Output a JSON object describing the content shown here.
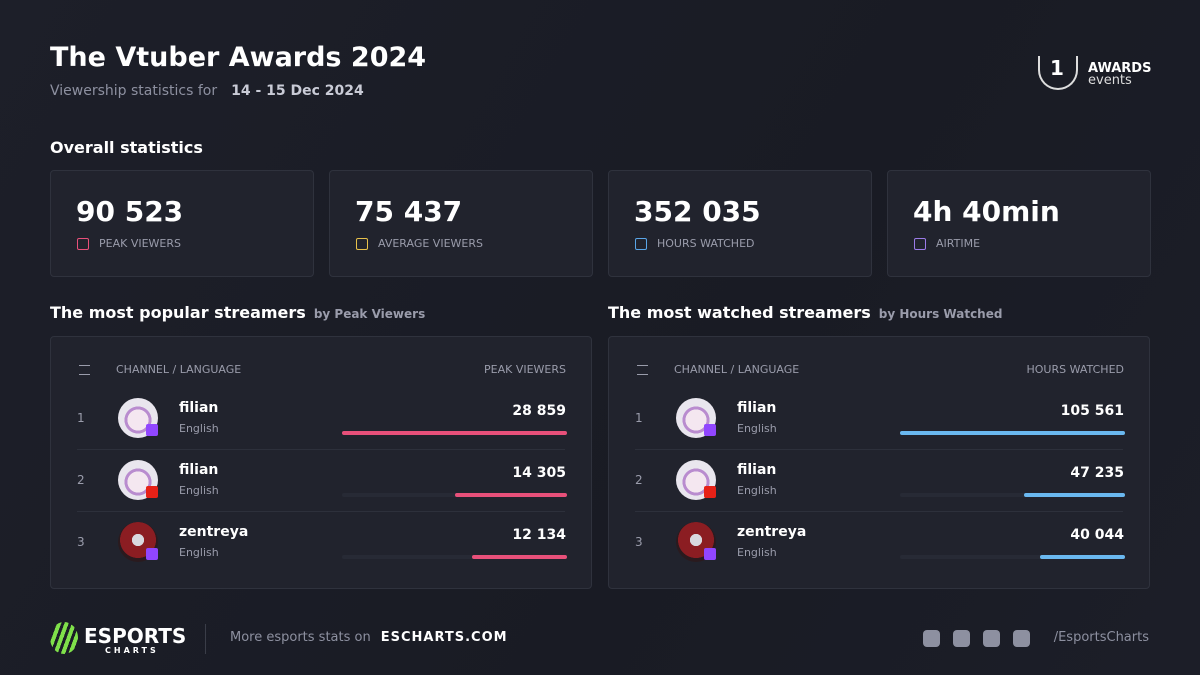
{
  "header": {
    "title": "The Vtuber Awards 2024",
    "subtitle": "Viewership statistics for",
    "dates": "14 - 15 Dec 2024"
  },
  "logo": {
    "rank": "1",
    "line1": "AWARDS",
    "line2": "events"
  },
  "overall": {
    "title": "Overall statistics",
    "cards": [
      {
        "value": "90 523",
        "label": "PEAK VIEWERS",
        "icon_color": "#e8507a"
      },
      {
        "value": "75 437",
        "label": "AVERAGE VIEWERS",
        "icon_color": "#e7c14b"
      },
      {
        "value": "352 035",
        "label": "HOURS WATCHED",
        "icon_color": "#5aa6e8"
      },
      {
        "value": "4h 40min",
        "label": "AIRTIME",
        "icon_color": "#9b7be8"
      }
    ]
  },
  "tables": [
    {
      "title": "The most popular streamers",
      "subtitle": "by Peak Viewers",
      "col_channel": "CHANNEL / LANGUAGE",
      "col_metric": "PEAK VIEWERS",
      "bar_color": "#e8507a",
      "rows": [
        {
          "rank": 1,
          "name": "filian",
          "language": "English",
          "platform": "twitch",
          "value": 28859,
          "value_label": "28 859"
        },
        {
          "rank": 2,
          "name": "filian",
          "language": "English",
          "platform": "youtube",
          "value": 14305,
          "value_label": "14 305"
        },
        {
          "rank": 3,
          "name": "zentreya",
          "language": "English",
          "platform": "twitch",
          "value": 12134,
          "value_label": "12 134"
        }
      ]
    },
    {
      "title": "The most watched streamers",
      "subtitle": "by Hours Watched",
      "col_channel": "CHANNEL / LANGUAGE",
      "col_metric": "HOURS WATCHED",
      "bar_color": "#6ab8f0",
      "rows": [
        {
          "rank": 1,
          "name": "filian",
          "language": "English",
          "platform": "twitch",
          "value": 105561,
          "value_label": "105 561"
        },
        {
          "rank": 2,
          "name": "filian",
          "language": "English",
          "platform": "youtube",
          "value": 47235,
          "value_label": "47 235"
        },
        {
          "rank": 3,
          "name": "zentreya",
          "language": "English",
          "platform": "twitch",
          "value": 40044,
          "value_label": "40 044"
        }
      ]
    }
  ],
  "footer": {
    "brand": "ESPORTS",
    "brand_sub": "CHARTS",
    "more": "More esports stats on",
    "site": "ESCHARTS.COM",
    "handle": "/EsportsCharts"
  }
}
